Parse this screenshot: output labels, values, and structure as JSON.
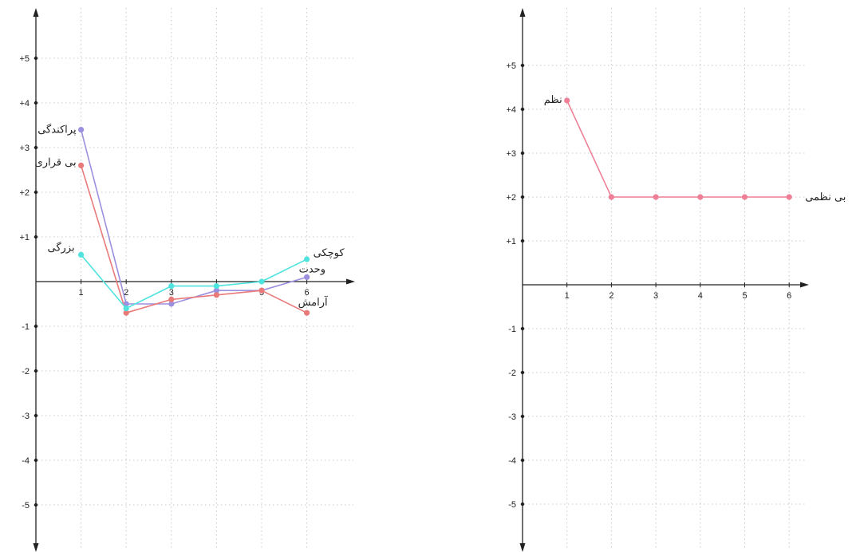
{
  "chart_data": [
    {
      "type": "line",
      "title": "",
      "xlabel": "",
      "ylabel": "",
      "grid": true,
      "x": [
        1,
        2,
        3,
        4,
        5,
        6
      ],
      "xlim": [
        0,
        6.5
      ],
      "ylim": [
        -5.7,
        6
      ],
      "x_tick_labels": [
        "1",
        "2",
        "3",
        "4",
        "5",
        "6"
      ],
      "y_tick_labels": [
        "+5",
        "+4",
        "+3",
        "+2",
        "+1",
        "-1",
        "-2",
        "-3",
        "-4",
        "-5"
      ],
      "series": [
        {
          "name": "پراکندگی",
          "color": "#9b8fe0",
          "values": [
            3.4,
            -0.5,
            -0.5,
            -0.2,
            -0.2,
            0.1
          ]
        },
        {
          "name": "بی قراری",
          "color": "#e97a7a",
          "values": [
            2.6,
            -0.7,
            -0.4,
            -0.3,
            -0.2,
            -0.7
          ]
        },
        {
          "name": "بزرگی",
          "color": "#4fe3df",
          "values": [
            0.6,
            -0.6,
            -0.1,
            -0.1,
            0.0,
            0.5
          ]
        },
        {
          "name": "کوچکی",
          "color": "#4fe3df",
          "values": [
            0.6,
            -0.6,
            -0.1,
            -0.1,
            0.0,
            0.5
          ]
        },
        {
          "name": "وحدت",
          "color": "#9b8fe0",
          "values": [
            3.4,
            -0.5,
            -0.5,
            -0.2,
            -0.2,
            0.1
          ]
        },
        {
          "name": "آرامش",
          "color": "#e97a7a",
          "values": [
            2.6,
            -0.7,
            -0.4,
            -0.3,
            -0.2,
            -0.7
          ]
        }
      ]
    },
    {
      "type": "line",
      "title": "",
      "xlabel": "",
      "ylabel": "",
      "grid": true,
      "x": [
        1,
        2,
        3,
        4,
        5,
        6
      ],
      "xlim": [
        0,
        6.5
      ],
      "ylim": [
        -5.7,
        6
      ],
      "x_tick_labels": [
        "1",
        "2",
        "3",
        "4",
        "5",
        "6"
      ],
      "y_tick_labels": [
        "+5",
        "+4",
        "+3",
        "+2",
        "+1",
        "-1",
        "-2",
        "-3",
        "-4",
        "-5"
      ],
      "series": [
        {
          "name": "نظم",
          "color": "#ee7f96",
          "values": [
            4.2,
            2,
            2,
            2,
            2,
            2
          ]
        },
        {
          "name": "بی نظمی",
          "color": "#ee7f96",
          "values": [
            4.2,
            2,
            2,
            2,
            2,
            2
          ]
        }
      ]
    }
  ]
}
